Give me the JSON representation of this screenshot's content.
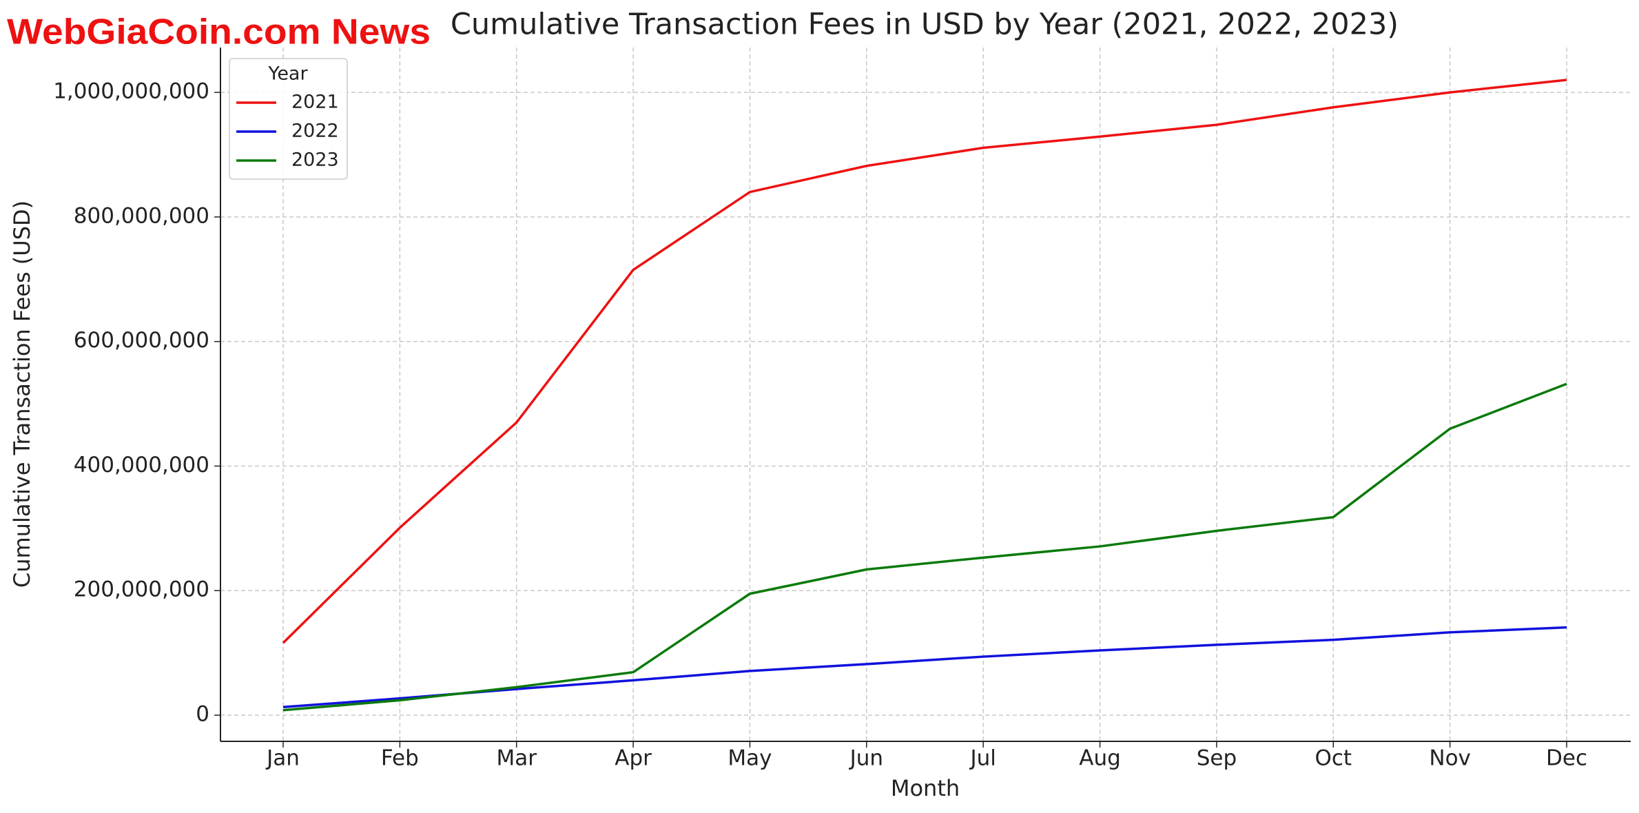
{
  "chart_data": {
    "type": "line",
    "title": "Cumulative Transaction Fees in USD by Year (2021, 2022, 2023)",
    "watermark": "WebGiaCoin.com News",
    "x_label": "Month",
    "y_label": "Cumulative Transaction Fees (USD)",
    "legend_title": "Year",
    "legend_position": "upper left",
    "grid": true,
    "categories": [
      "Jan",
      "Feb",
      "Mar",
      "Apr",
      "May",
      "Jun",
      "Jul",
      "Aug",
      "Sep",
      "Oct",
      "Nov",
      "Dec"
    ],
    "series": [
      {
        "name": "2021",
        "color": "#ee1111",
        "values": [
          116000000,
          301000000,
          470000000,
          715000000,
          840000000,
          882000000,
          911000000,
          929000000,
          948000000,
          976000000,
          1000000000,
          1020000000
        ]
      },
      {
        "name": "2022",
        "color": "#1111dd",
        "values": [
          13000000,
          27000000,
          42000000,
          56000000,
          71000000,
          82000000,
          94000000,
          104000000,
          113000000,
          121000000,
          133000000,
          141000000
        ]
      },
      {
        "name": "2023",
        "color": "#0a7a0a",
        "values": [
          8000000,
          24000000,
          45000000,
          69000000,
          195000000,
          234000000,
          253000000,
          271000000,
          296000000,
          318000000,
          460000000,
          532000000
        ]
      }
    ],
    "ylim": [
      -42000000,
      1072000000
    ],
    "yticks": [
      0,
      {
        "value": 200000000,
        "label": "200,000,000"
      },
      {
        "value": 400000000,
        "label": "400,000,000"
      },
      {
        "value": 600000000,
        "label": "600,000,000"
      },
      {
        "value": 800000000,
        "label": "800,000,000"
      },
      {
        "value": 1000000000,
        "label": "1,000,000,000"
      }
    ]
  }
}
